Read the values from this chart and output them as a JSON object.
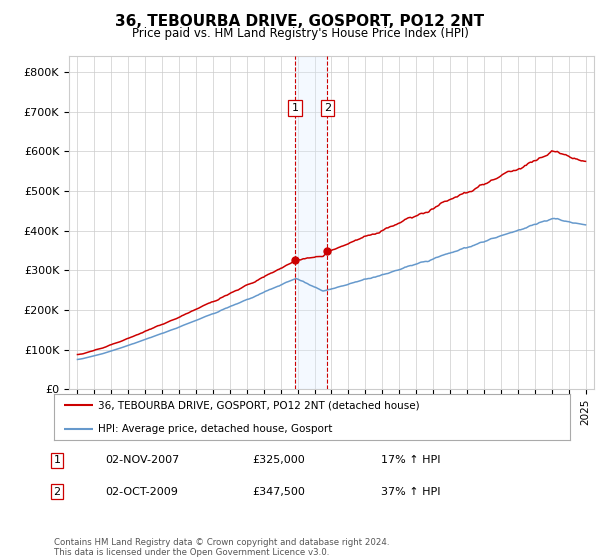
{
  "title": "36, TEBOURBA DRIVE, GOSPORT, PO12 2NT",
  "subtitle": "Price paid vs. HM Land Registry's House Price Index (HPI)",
  "ylabel_ticks": [
    "£0",
    "£100K",
    "£200K",
    "£300K",
    "£400K",
    "£500K",
    "£600K",
    "£700K",
    "£800K"
  ],
  "ytick_values": [
    0,
    100000,
    200000,
    300000,
    400000,
    500000,
    600000,
    700000,
    800000
  ],
  "ylim": [
    0,
    840000
  ],
  "xlim": [
    1994.5,
    2025.5
  ],
  "sale1": {
    "date_num": 2007.84,
    "price": 325000,
    "label": "1"
  },
  "sale2": {
    "date_num": 2009.75,
    "price": 347500,
    "label": "2"
  },
  "legend1": "36, TEBOURBA DRIVE, GOSPORT, PO12 2NT (detached house)",
  "legend2": "HPI: Average price, detached house, Gosport",
  "table_rows": [
    [
      "1",
      "02-NOV-2007",
      "£325,000",
      "17% ↑ HPI"
    ],
    [
      "2",
      "02-OCT-2009",
      "£347,500",
      "37% ↑ HPI"
    ]
  ],
  "footer": "Contains HM Land Registry data © Crown copyright and database right 2024.\nThis data is licensed under the Open Government Licence v3.0.",
  "red_color": "#cc0000",
  "blue_color": "#6699cc",
  "background_color": "#ffffff",
  "grid_color": "#cccccc",
  "highlight_color": "#ddeeff"
}
